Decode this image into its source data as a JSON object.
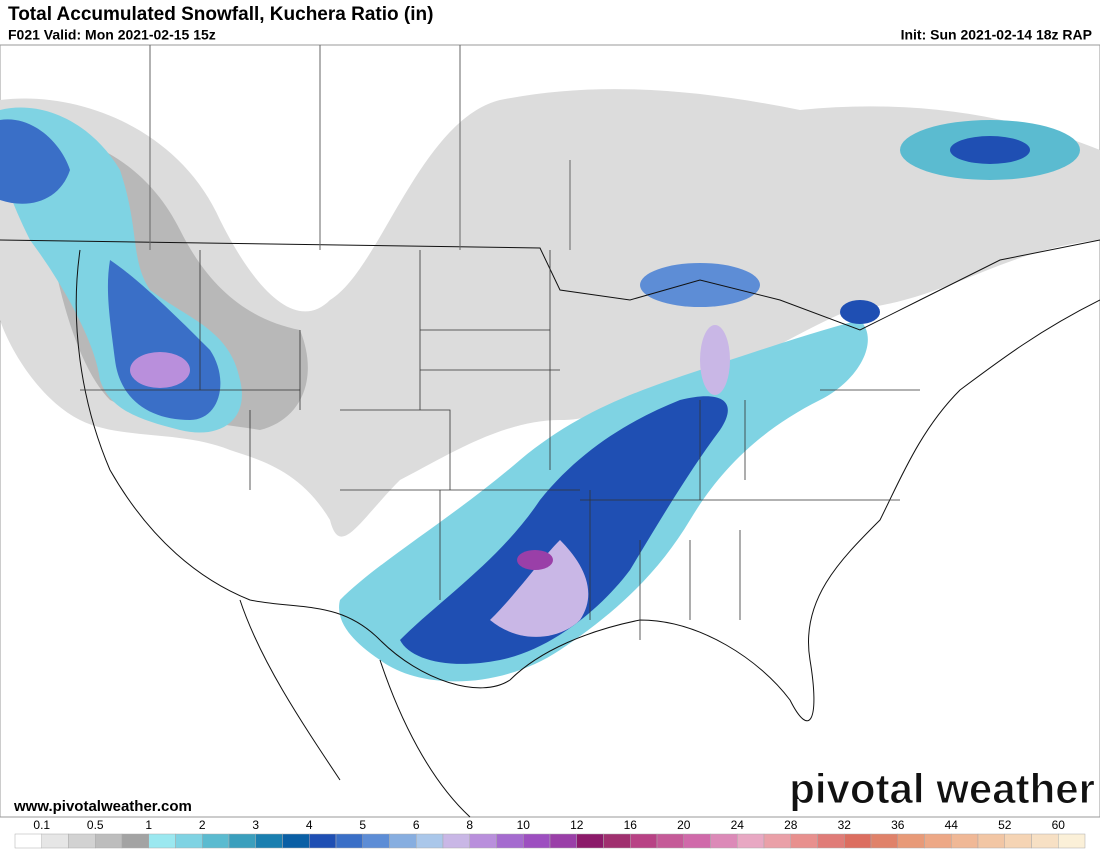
{
  "header": {
    "title": "Total Accumulated Snowfall, Kuchera Ratio (in)",
    "valid": "F021 Valid: Mon 2021-02-15 15z",
    "init": "Init: Sun 2021-02-14 18z RAP"
  },
  "footer": {
    "website": "www.pivotalweather.com",
    "watermark": "pivotal weather"
  },
  "legend": {
    "levels": [
      0.1,
      0.5,
      1,
      2,
      3,
      4,
      5,
      6,
      8,
      10,
      12,
      16,
      20,
      24,
      28,
      32,
      36,
      44,
      52,
      60
    ],
    "colors": [
      "#ffffff",
      "#e6e6e6",
      "#d2d2d2",
      "#bdbdbd",
      "#a3a3a3",
      "#9be8f0",
      "#7fd3e3",
      "#5bbbd0",
      "#3a9fbd",
      "#1a7fb0",
      "#0a5fa5",
      "#1f4fb3",
      "#3a6fc7",
      "#5d8dd6",
      "#87aee0",
      "#aac7ea",
      "#c9b7e6",
      "#b98fdc",
      "#a56bcf",
      "#9d4fc0",
      "#9a3fa8",
      "#8c1a6a",
      "#a0306f",
      "#b84285",
      "#c55a98",
      "#d06aaa",
      "#dc8ab8",
      "#e8a8c3",
      "#eaa0a8",
      "#e8908e",
      "#e07c78",
      "#dc6e60",
      "#e0826a",
      "#e89a78",
      "#eda886",
      "#f0b896",
      "#f2c6a4",
      "#f5d4b4",
      "#f7e0c4",
      "#fbf0d8"
    ]
  }
}
